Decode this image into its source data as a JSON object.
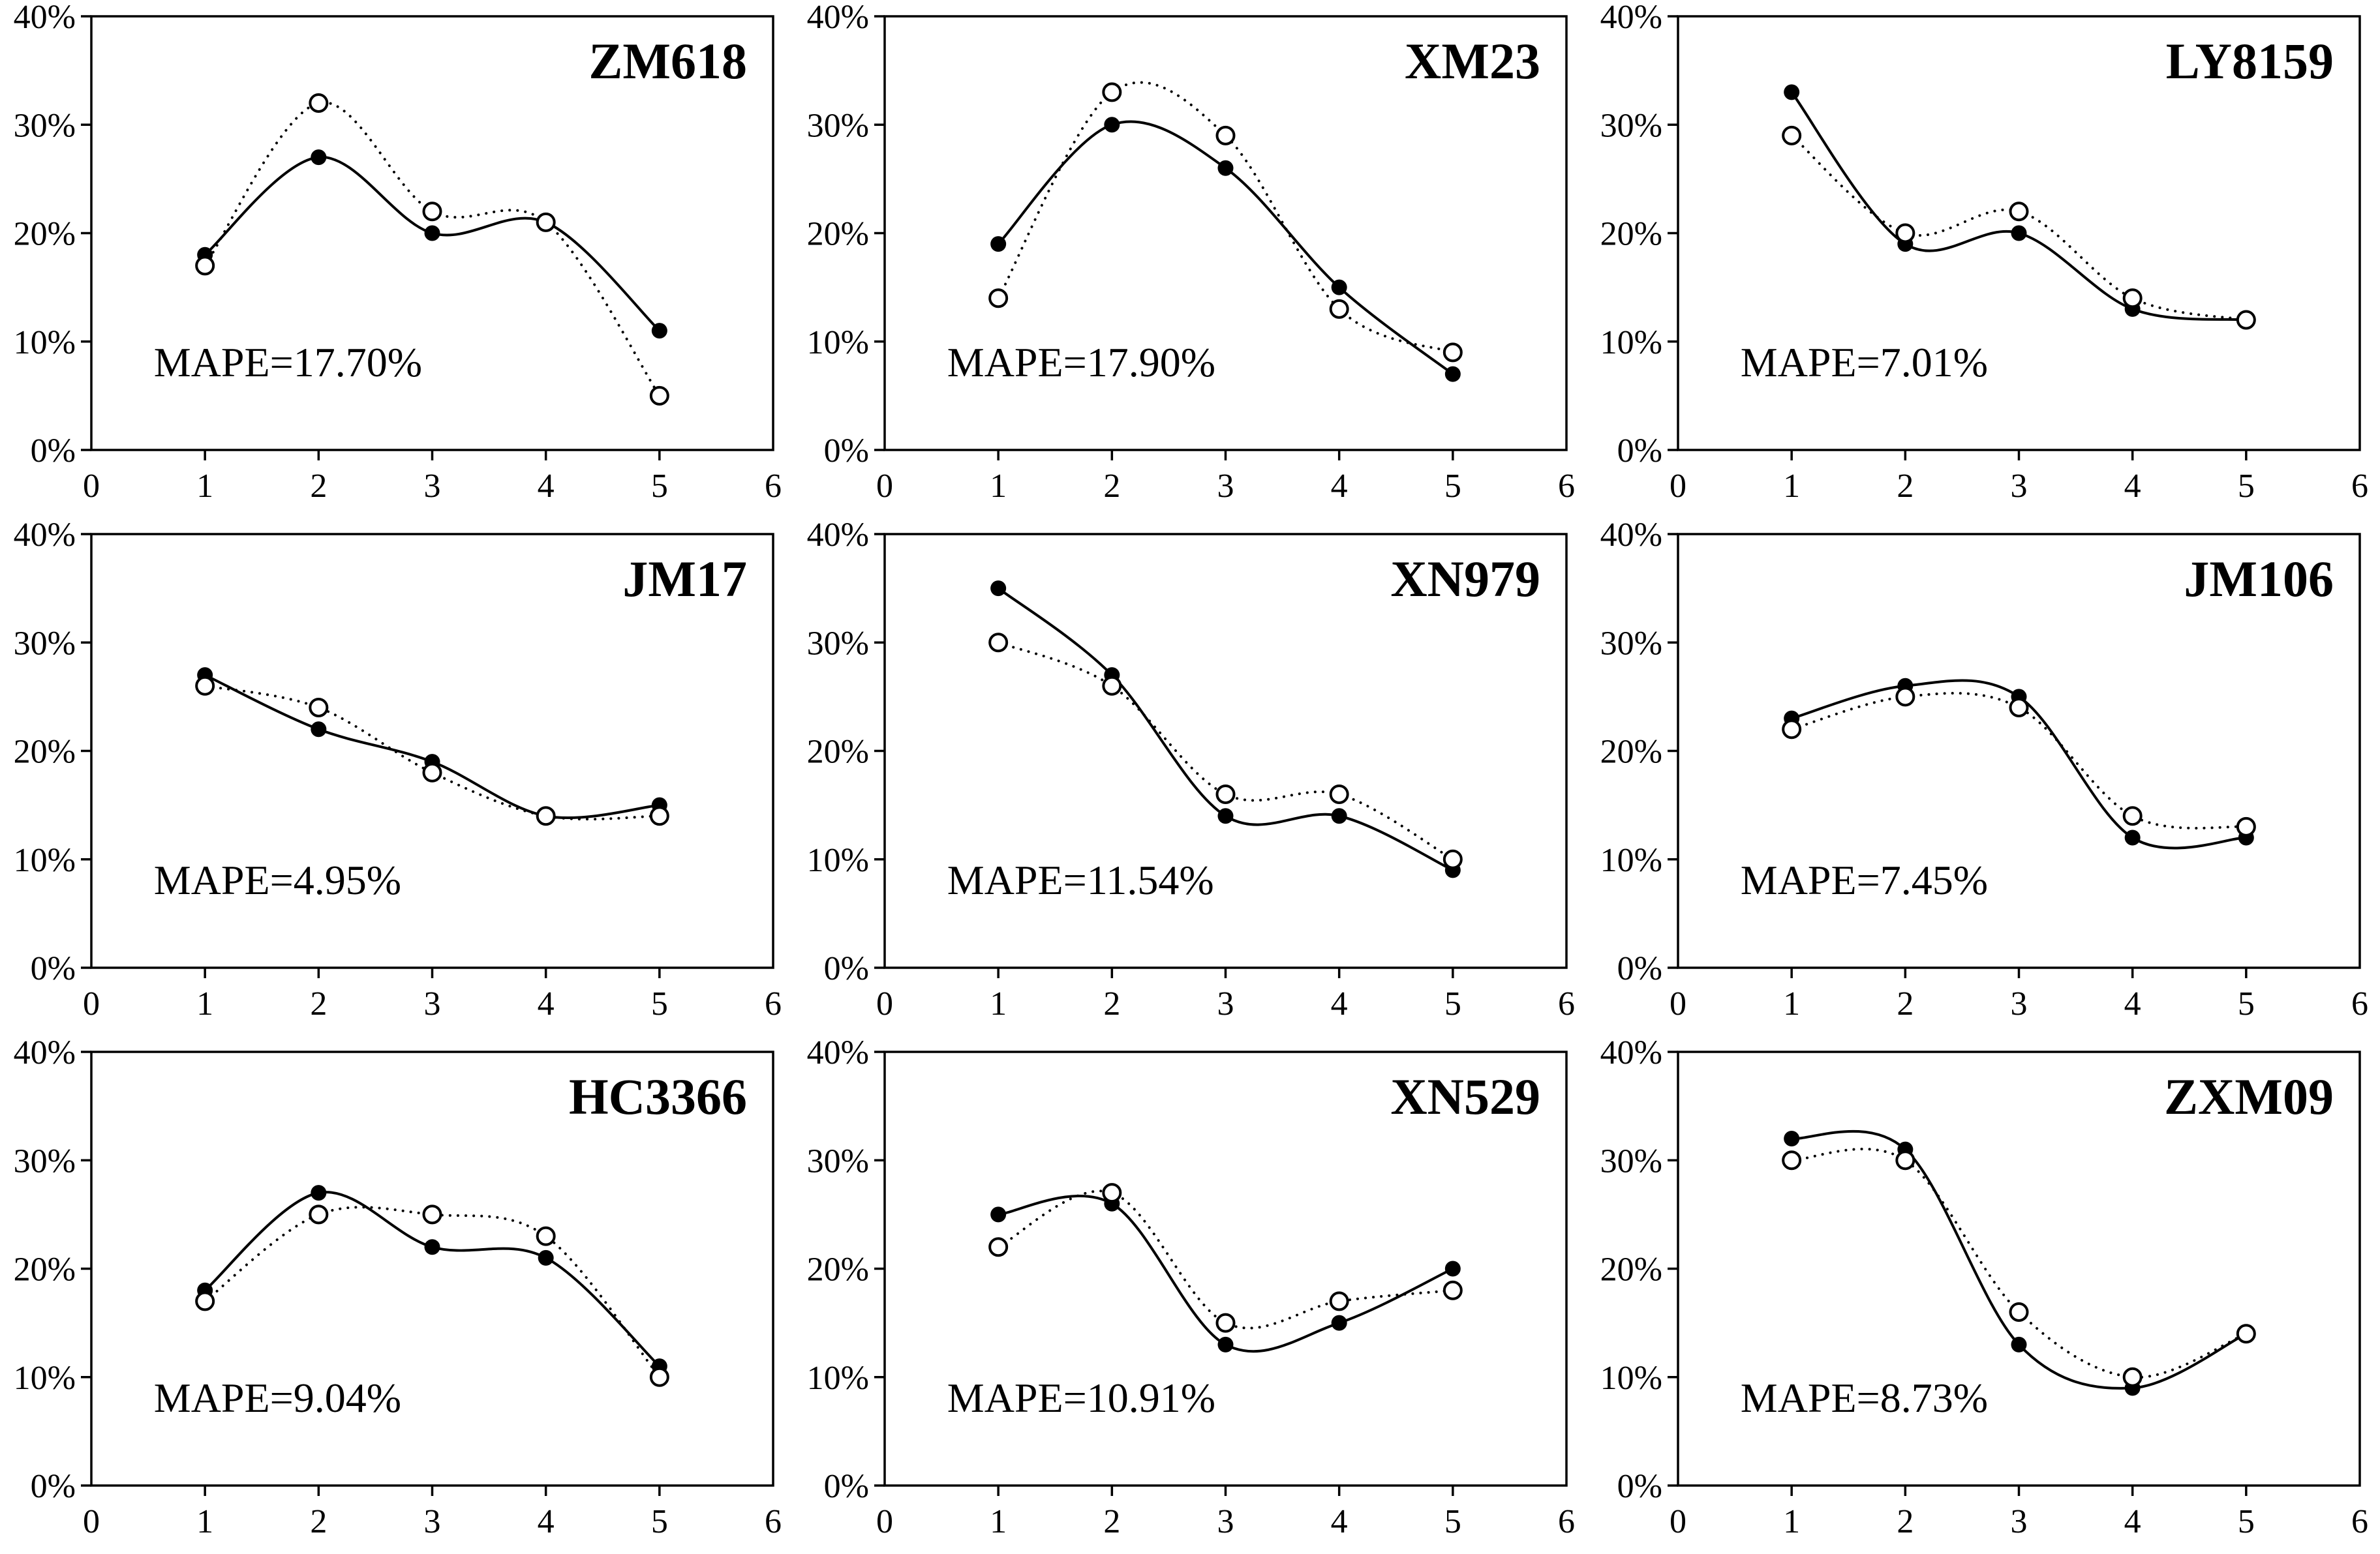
{
  "page": {
    "background": "#ffffff"
  },
  "colors": {
    "line": "#000000",
    "text": "#000000",
    "marker_fill": "#000000",
    "open_marker_fill": "#ffffff"
  },
  "axis": {
    "xlim": [
      0,
      6
    ],
    "ylim": [
      0,
      40
    ],
    "xticks": [
      0,
      1,
      2,
      3,
      4,
      5,
      6
    ],
    "ytick_values": [
      0,
      10,
      20,
      30,
      40
    ],
    "ytick_labels": [
      "0%",
      "10%",
      "20%",
      "30%",
      "40%"
    ],
    "grid": false,
    "box": true,
    "legend": "none"
  },
  "series_styles": [
    {
      "key": "solid_filled",
      "line": "solid",
      "marker": "filled-circle"
    },
    {
      "key": "dotted_open",
      "line": "dotted",
      "marker": "open-circle"
    }
  ],
  "chart_data": [
    {
      "type": "line",
      "title": "ZM618",
      "annotation": "MAPE=17.70%",
      "x": [
        1,
        2,
        3,
        4,
        5
      ],
      "xlim": [
        0,
        6
      ],
      "ylim": [
        0,
        40
      ],
      "series": [
        {
          "name": "solid line, filled circle markers",
          "values": [
            18,
            27,
            20,
            21,
            11
          ]
        },
        {
          "name": "dotted line, open circle markers",
          "values": [
            17,
            32,
            22,
            21,
            5
          ]
        }
      ]
    },
    {
      "type": "line",
      "title": "XM23",
      "annotation": "MAPE=17.90%",
      "x": [
        1,
        2,
        3,
        4,
        5
      ],
      "xlim": [
        0,
        6
      ],
      "ylim": [
        0,
        40
      ],
      "series": [
        {
          "name": "solid line, filled circle markers",
          "values": [
            19,
            30,
            26,
            15,
            7
          ]
        },
        {
          "name": "dotted line, open circle markers",
          "values": [
            14,
            33,
            29,
            13,
            9
          ]
        }
      ]
    },
    {
      "type": "line",
      "title": "LY8159",
      "annotation": "MAPE=7.01%",
      "x": [
        1,
        2,
        3,
        4,
        5
      ],
      "xlim": [
        0,
        6
      ],
      "ylim": [
        0,
        40
      ],
      "series": [
        {
          "name": "solid line, filled circle markers",
          "values": [
            33,
            19,
            20,
            13,
            12
          ]
        },
        {
          "name": "dotted line, open circle markers",
          "values": [
            29,
            20,
            22,
            14,
            12
          ]
        }
      ]
    },
    {
      "type": "line",
      "title": "JM17",
      "annotation": "MAPE=4.95%",
      "x": [
        1,
        2,
        3,
        4,
        5
      ],
      "xlim": [
        0,
        6
      ],
      "ylim": [
        0,
        40
      ],
      "series": [
        {
          "name": "solid line, filled circle markers",
          "values": [
            27,
            22,
            19,
            14,
            15
          ]
        },
        {
          "name": "dotted line, open circle markers",
          "values": [
            26,
            24,
            18,
            14,
            14
          ]
        }
      ]
    },
    {
      "type": "line",
      "title": "XN979",
      "annotation": "MAPE=11.54%",
      "x": [
        1,
        2,
        3,
        4,
        5
      ],
      "xlim": [
        0,
        6
      ],
      "ylim": [
        0,
        40
      ],
      "series": [
        {
          "name": "solid line, filled circle markers",
          "values": [
            35,
            27,
            14,
            14,
            9
          ]
        },
        {
          "name": "dotted line, open circle markers",
          "values": [
            30,
            26,
            16,
            16,
            10
          ]
        }
      ]
    },
    {
      "type": "line",
      "title": "JM106",
      "annotation": "MAPE=7.45%",
      "x": [
        1,
        2,
        3,
        4,
        5
      ],
      "xlim": [
        0,
        6
      ],
      "ylim": [
        0,
        40
      ],
      "series": [
        {
          "name": "solid line, filled circle markers",
          "values": [
            23,
            26,
            25,
            12,
            12
          ]
        },
        {
          "name": "dotted line, open circle markers",
          "values": [
            22,
            25,
            24,
            14,
            13
          ]
        }
      ]
    },
    {
      "type": "line",
      "title": "HC3366",
      "annotation": "MAPE=9.04%",
      "x": [
        1,
        2,
        3,
        4,
        5
      ],
      "xlim": [
        0,
        6
      ],
      "ylim": [
        0,
        40
      ],
      "series": [
        {
          "name": "solid line, filled circle markers",
          "values": [
            18,
            27,
            22,
            21,
            11
          ]
        },
        {
          "name": "dotted line, open circle markers",
          "values": [
            17,
            25,
            25,
            23,
            10
          ]
        }
      ]
    },
    {
      "type": "line",
      "title": "XN529",
      "annotation": "MAPE=10.91%",
      "x": [
        1,
        2,
        3,
        4,
        5
      ],
      "xlim": [
        0,
        6
      ],
      "ylim": [
        0,
        40
      ],
      "series": [
        {
          "name": "solid line, filled circle markers",
          "values": [
            25,
            26,
            13,
            15,
            20
          ]
        },
        {
          "name": "dotted line, open circle markers",
          "values": [
            22,
            27,
            15,
            17,
            18
          ]
        }
      ]
    },
    {
      "type": "line",
      "title": "ZXM09",
      "annotation": "MAPE=8.73%",
      "x": [
        1,
        2,
        3,
        4,
        5
      ],
      "xlim": [
        0,
        6
      ],
      "ylim": [
        0,
        40
      ],
      "series": [
        {
          "name": "solid line, filled circle markers",
          "values": [
            32,
            31,
            13,
            9,
            14
          ]
        },
        {
          "name": "dotted line, open circle markers",
          "values": [
            30,
            30,
            16,
            10,
            14
          ]
        }
      ]
    }
  ]
}
